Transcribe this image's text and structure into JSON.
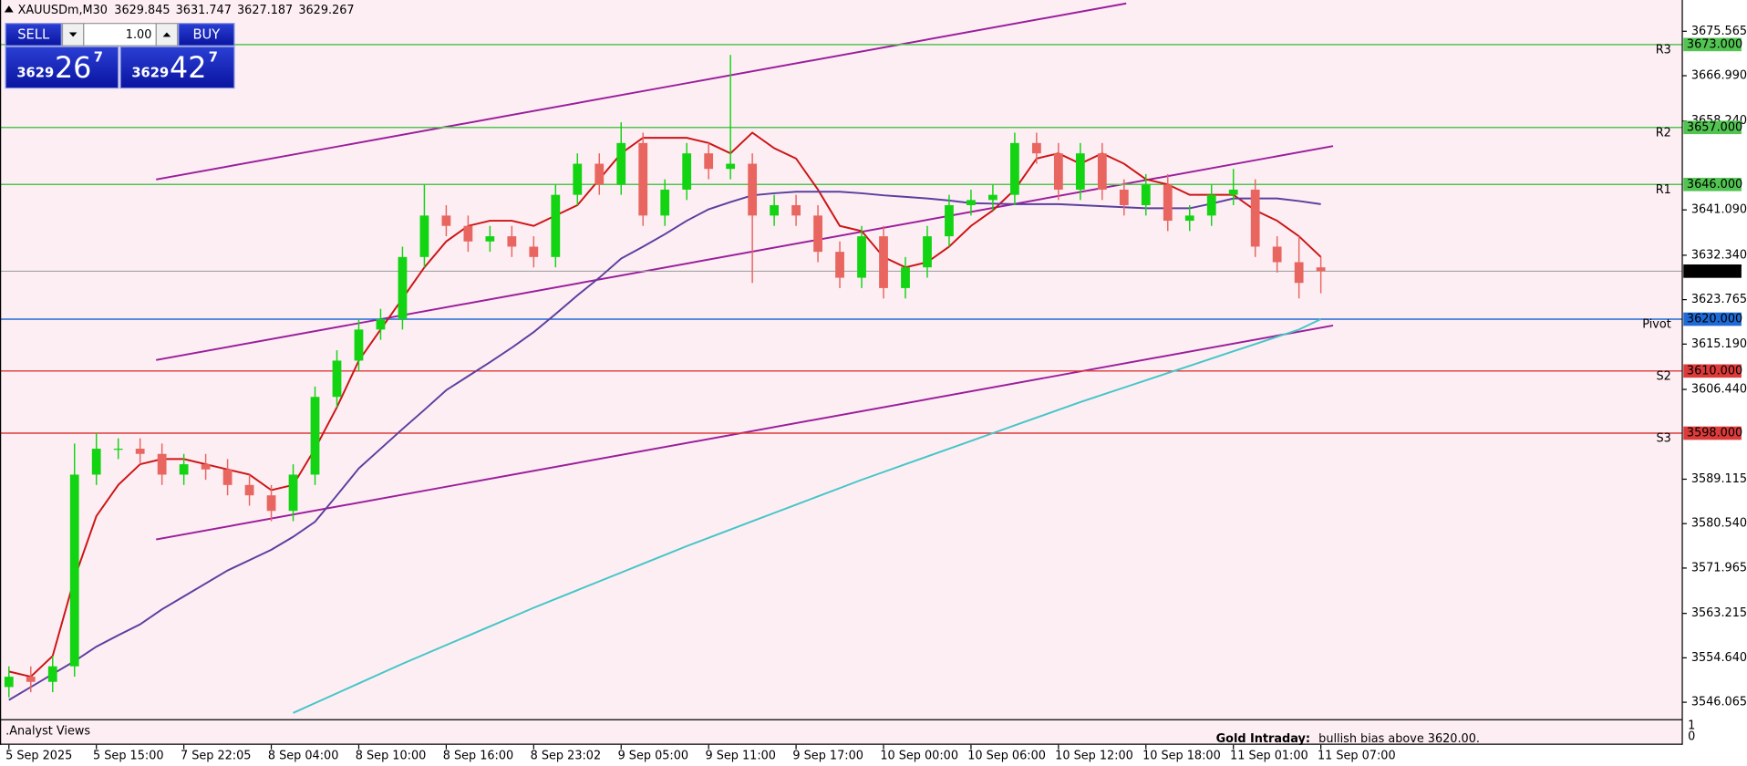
{
  "chart_data": {
    "type": "candlestick",
    "title": "XAUUSDm,M30",
    "header_values": [
      3629.845,
      3631.747,
      3627.187,
      3629.267
    ],
    "categories": [
      "5 Sep 2025",
      null,
      null,
      null,
      "5 Sep 15:00",
      null,
      null,
      null,
      "7 Sep 22:05",
      null,
      null,
      null,
      "8 Sep 04:00",
      null,
      null,
      null,
      "8 Sep 10:00",
      null,
      null,
      null,
      "8 Sep 16:00",
      null,
      null,
      null,
      "8 Sep 23:02",
      null,
      null,
      null,
      "9 Sep 05:00",
      null,
      null,
      null,
      "9 Sep 11:00",
      null,
      null,
      null,
      "9 Sep 17:00",
      null,
      null,
      null,
      "10 Sep 00:00",
      null,
      null,
      null,
      "10 Sep 06:00",
      null,
      null,
      null,
      "10 Sep 12:00",
      null,
      null,
      null,
      "10 Sep 18:00",
      null,
      null,
      null,
      "11 Sep 01:00",
      null,
      null,
      null,
      "11 Sep 07:00"
    ],
    "open": [
      3549,
      3551,
      3550,
      3553,
      3590,
      3595,
      3595,
      3594,
      3590,
      3592,
      3591,
      3588,
      3586,
      3583,
      3590,
      3605,
      3612,
      3618,
      3620,
      3632,
      3640,
      3638,
      3635,
      3636,
      3634,
      3632,
      3644,
      3650,
      3646,
      3654,
      3640,
      3645,
      3652,
      3649,
      3650,
      3640,
      3642,
      3640,
      3633,
      3628,
      3636,
      3626,
      3630,
      3636,
      3642,
      3643,
      3644,
      3654,
      3652,
      3645,
      3652,
      3645,
      3642,
      3646,
      3639,
      3640,
      3644,
      3645,
      3634,
      3631,
      3630
    ],
    "high": [
      3553,
      3553,
      3555,
      3596,
      3598,
      3597,
      3597,
      3596,
      3594,
      3594,
      3593,
      3590,
      3588,
      3592,
      3607,
      3614,
      3620,
      3622,
      3634,
      3646,
      3642,
      3640,
      3638,
      3638,
      3636,
      3646,
      3652,
      3652,
      3658,
      3656,
      3647,
      3654,
      3654,
      3671,
      3652,
      3644,
      3644,
      3642,
      3635,
      3638,
      3638,
      3632,
      3638,
      3644,
      3645,
      3646,
      3656,
      3656,
      3654,
      3654,
      3654,
      3647,
      3648,
      3648,
      3642,
      3646,
      3649,
      3647,
      3636,
      3636,
      3632
    ],
    "low": [
      3547,
      3548,
      3548,
      3551,
      3588,
      3593,
      3592,
      3588,
      3588,
      3589,
      3586,
      3584,
      3581,
      3581,
      3588,
      3603,
      3610,
      3616,
      3618,
      3630,
      3636,
      3633,
      3633,
      3632,
      3630,
      3630,
      3642,
      3644,
      3644,
      3638,
      3638,
      3643,
      3647,
      3647,
      3627,
      3638,
      3638,
      3631,
      3626,
      3626,
      3624,
      3624,
      3628,
      3634,
      3640,
      3641,
      3642,
      3650,
      3643,
      3643,
      3643,
      3640,
      3640,
      3637,
      3637,
      3638,
      3642,
      3632,
      3629,
      3624,
      3625
    ],
    "close": [
      3551,
      3550,
      3553,
      3590,
      3595,
      3595,
      3594,
      3590,
      3592,
      3591,
      3588,
      3586,
      3583,
      3590,
      3605,
      3612,
      3618,
      3620,
      3632,
      3640,
      3638,
      3635,
      3636,
      3634,
      3632,
      3644,
      3650,
      3646,
      3654,
      3640,
      3645,
      3652,
      3649,
      3650,
      3640,
      3642,
      3640,
      3633,
      3628,
      3636,
      3626,
      3630,
      3636,
      3642,
      3643,
      3644,
      3654,
      3652,
      3645,
      3652,
      3645,
      3642,
      3646,
      3639,
      3640,
      3644,
      3645,
      3634,
      3631,
      3627,
      3629.267
    ],
    "up_color": "#13d413",
    "down_color": "#e8665f",
    "lines": [
      {
        "color": "#cc1414",
        "values": [
          3552,
          3551,
          3555,
          3570,
          3582,
          3588,
          3592,
          3593,
          3593,
          3592,
          3591,
          3590,
          3587,
          3588,
          3595,
          3603,
          3612,
          3618,
          3624,
          3630,
          3635,
          3638,
          3639,
          3639,
          3638,
          3640,
          3642,
          3647,
          3652,
          3655,
          3655,
          3655,
          3654,
          3652,
          3656,
          3653,
          3651,
          3645,
          3638,
          3637,
          3632,
          3630,
          3631,
          3634,
          3638,
          3641,
          3645,
          3651,
          3652,
          3650,
          3652,
          3650,
          3647,
          3646,
          3644,
          3644,
          3644,
          3641,
          3639,
          3636,
          3632
        ]
      },
      {
        "color": "#5b3f9e",
        "values": [
          3546.5,
          3549,
          3551.5,
          3554,
          3556.8,
          3559,
          3561.1,
          3564,
          3566.5,
          3569,
          3571.5,
          3573.5,
          3575.5,
          3578,
          3580.9,
          3586,
          3591.2,
          3595,
          3598.8,
          3602.5,
          3606.3,
          3609,
          3611.7,
          3614.5,
          3617.5,
          3621,
          3624.6,
          3628,
          3631.7,
          3634,
          3636.4,
          3639,
          3641.2,
          3642.6,
          3643.9,
          3644.3,
          3644.6,
          3644.6,
          3644.6,
          3644.3,
          3643.9,
          3643.6,
          3643.3,
          3642.9,
          3642.4,
          3642.3,
          3642.2,
          3642.2,
          3642.2,
          3642,
          3641.8,
          3641.6,
          3641.4,
          3641.4,
          3641.4,
          3642.3,
          3643.3,
          3643.3,
          3643.3,
          3642.8,
          3642.2
        ]
      },
      {
        "color": "#45c6c6",
        "values": [
          null,
          null,
          null,
          null,
          null,
          null,
          null,
          null,
          null,
          null,
          null,
          null,
          null,
          3544,
          3545.9,
          3547.8,
          3549.7,
          3551.6,
          3553.5,
          3555.3,
          3557.1,
          3558.9,
          3560.7,
          3562.5,
          3564.3,
          3566.0,
          3567.7,
          3569.4,
          3571.1,
          3572.8,
          3574.5,
          3576.2,
          3577.8,
          3579.4,
          3581.0,
          3582.6,
          3584.2,
          3585.8,
          3587.4,
          3589.0,
          3590.5,
          3592.0,
          3593.5,
          3595.0,
          3596.5,
          3598.0,
          3599.5,
          3601.0,
          3602.5,
          3604.0,
          3605.4,
          3606.8,
          3608.2,
          3609.6,
          3611.0,
          3612.4,
          3613.8,
          3615.2,
          3616.6,
          3618.0,
          3620
        ]
      }
    ],
    "trendlines": [
      {
        "color": "#9b1f9b",
        "x": [
          6.73,
          51.1
        ],
        "y": [
          3646.96,
          3680.94
        ]
      },
      {
        "color": "#9b1f9b",
        "x": [
          6.73,
          60.56
        ],
        "y": [
          3612.11,
          3653.41
        ]
      },
      {
        "color": "#9b1f9b",
        "x": [
          6.73,
          60.56
        ],
        "y": [
          3577.48,
          3618.78
        ]
      }
    ],
    "levels": [
      {
        "name": "R3",
        "value": 3673,
        "value_label": "3673.000",
        "color": "#52c452"
      },
      {
        "name": "R2",
        "value": 3657,
        "value_label": "3657.000",
        "color": "#52c452"
      },
      {
        "name": "R1",
        "value": 3646,
        "value_label": "3646.000",
        "color": "#52c452"
      },
      {
        "name": "Pivot",
        "value": 3620,
        "value_label": "3620.000",
        "color": "#1e6ad6"
      },
      {
        "name": "S2",
        "value": 3610,
        "value_label": "3610.000",
        "color": "#dd3a3a"
      },
      {
        "name": "S3",
        "value": 3598,
        "value_label": "3598.000",
        "color": "#dd3a3a"
      }
    ],
    "current_price": 3629.267,
    "ylim": [
      3542.8,
      3681.6
    ],
    "yticks": [
      3675.565,
      {
        "value": 3666.99,
        "label": "3666.990"
      },
      {
        "value": 3658.24,
        "label": "3658.240"
      },
      {
        "value": 3641.09,
        "label": "3641.090"
      },
      {
        "value": 3632.34,
        "label": "3632.340"
      },
      3623.765,
      {
        "value": 3615.19,
        "label": "3615.190"
      },
      {
        "value": 3606.44,
        "label": "3606.440"
      },
      3589.115,
      {
        "value": 3580.54,
        "label": "3580.540"
      },
      3571.965,
      3563.215,
      {
        "value": 3554.64,
        "label": "3554.640"
      },
      3546.065
    ]
  },
  "trade_panel": {
    "sell": "SELL",
    "lot": "1.00",
    "buy": "BUY",
    "bid": [
      "3629",
      "26",
      "7"
    ],
    "ask": [
      "3629",
      "42",
      "7"
    ]
  },
  "subwindow": {
    "title": ".Analyst Views",
    "yticks": [
      1,
      0
    ],
    "label": "Gold Intraday:",
    "text": "bullish bias above 3620.00."
  }
}
